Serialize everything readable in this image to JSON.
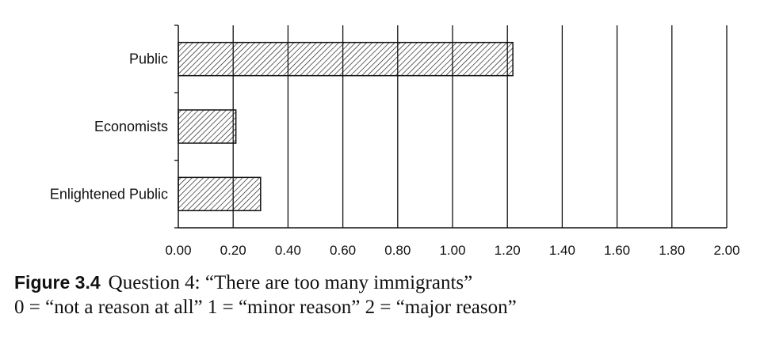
{
  "chart_data": {
    "type": "bar",
    "orientation": "horizontal",
    "categories": [
      "Public",
      "Economists",
      "Enlightened Public"
    ],
    "values": [
      1.22,
      0.21,
      0.3
    ],
    "xlim": [
      0,
      2
    ],
    "x_ticks": [
      "0.00",
      "0.20",
      "0.40",
      "0.60",
      "0.80",
      "1.00",
      "1.20",
      "1.40",
      "1.60",
      "1.80",
      "2.00"
    ],
    "grid": "vertical",
    "bar_fill": "diagonal-hatch",
    "colors": {
      "bar_stroke": "#111111",
      "hatch": "#111111",
      "grid": "#111111"
    }
  },
  "caption": {
    "figure_label": "Figure 3.4",
    "title": "Question 4: “There are too many immigrants”",
    "scale_note": "0 = “not a reason at all” 1 = “minor reason” 2 = “major reason”"
  }
}
